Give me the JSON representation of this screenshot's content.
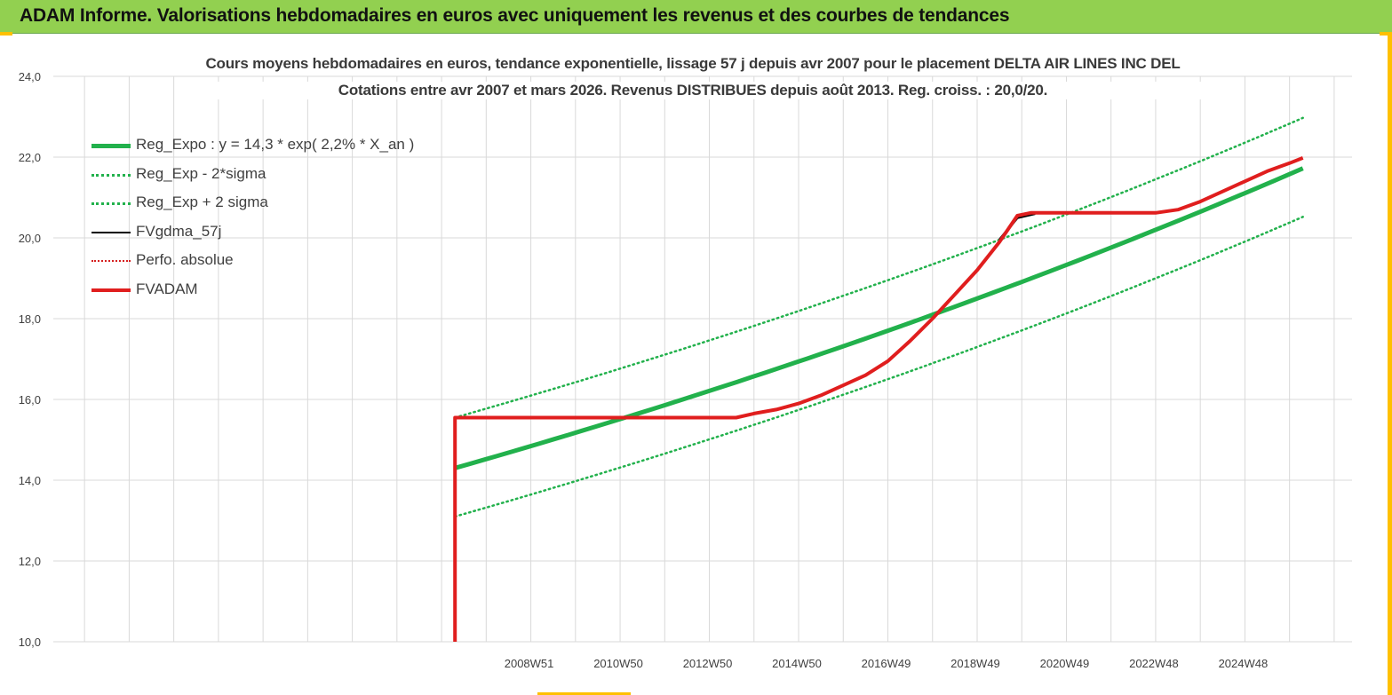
{
  "banner": {
    "title": "ADAM Informe. Valorisations hebdomadaires en euros avec uniquement les revenus et des courbes de tendances"
  },
  "colors": {
    "banner_bg": "#92d050",
    "accent_yellow": "#ffc000",
    "reg_expo": "#22b14c",
    "fvadam": "#e01e1e",
    "fvgdma": "#000000"
  },
  "chart_data": {
    "type": "line",
    "title_line1": "Cours moyens hebdomadaires en euros, tendance exponentielle, lissage 57 j depuis avr 2007 pour le placement DELTA AIR LINES INC DEL",
    "title_line2": "Cotations entre avr 2007 et mars 2026. Revenus DISTRIBUES depuis août 2013. Reg. croiss. : 20,0/20.",
    "xlabel": "",
    "ylabel": "",
    "ylim": [
      10,
      24
    ],
    "y_ticks": [
      "10,0",
      "12,0",
      "14,0",
      "16,0",
      "18,0",
      "20,0",
      "22,0",
      "24,0"
    ],
    "x_tick_labels": [
      "2008W51",
      "2010W50",
      "2012W50",
      "2014W50",
      "2016W49",
      "2018W49",
      "2020W49",
      "2022W48",
      "2024W48"
    ],
    "xlim": [
      1998.3,
      2027.4
    ],
    "x_tick_positions": [
      2008.96,
      2010.96,
      2012.96,
      2014.96,
      2016.96,
      2018.96,
      2020.96,
      2022.96,
      2024.96
    ],
    "grid": "vertical-and-horizontal",
    "legend_position": "top-left",
    "legend": [
      {
        "name": "Reg_Expo : y = 14,3 * exp( 2,2% *  X_an )",
        "style": "thick-green"
      },
      {
        "name": "Reg_Exp - 2*sigma",
        "style": "dotted-green"
      },
      {
        "name": "Reg_Exp + 2 sigma",
        "style": "dotted-green"
      },
      {
        "name": "FVgdma_57j",
        "style": "black"
      },
      {
        "name": "Perfo. absolue",
        "style": "dotted-red"
      },
      {
        "name": "FVADAM",
        "style": "thick-red"
      }
    ],
    "series": [
      {
        "name": "Reg_Expo : y = 14,3 * exp( 2,2% *  X_an )",
        "x": [
          2007.3,
          2026.3
        ],
        "a": 14.3,
        "b": 0.022,
        "offset": 0
      },
      {
        "name": "Reg_Exp - 2*sigma",
        "x": [
          2007.3,
          2026.3
        ],
        "a": 14.3,
        "b": 0.022,
        "offset": -1.2
      },
      {
        "name": "Reg_Exp + 2 sigma",
        "x": [
          2007.3,
          2026.3
        ],
        "a": 14.3,
        "b": 0.022,
        "offset": 1.25
      },
      {
        "name": "FVADAM",
        "points": [
          [
            2007.3,
            10.0
          ],
          [
            2007.3,
            15.55
          ],
          [
            2013.6,
            15.55
          ],
          [
            2014.0,
            15.65
          ],
          [
            2014.5,
            15.75
          ],
          [
            2015.0,
            15.9
          ],
          [
            2015.5,
            16.1
          ],
          [
            2016.0,
            16.35
          ],
          [
            2016.5,
            16.6
          ],
          [
            2017.0,
            16.95
          ],
          [
            2017.5,
            17.45
          ],
          [
            2018.0,
            18.0
          ],
          [
            2018.5,
            18.6
          ],
          [
            2019.0,
            19.2
          ],
          [
            2019.5,
            19.9
          ],
          [
            2019.9,
            20.55
          ],
          [
            2020.2,
            20.62
          ],
          [
            2023.0,
            20.62
          ],
          [
            2023.5,
            20.7
          ],
          [
            2024.0,
            20.9
          ],
          [
            2024.5,
            21.15
          ],
          [
            2025.0,
            21.4
          ],
          [
            2025.5,
            21.65
          ],
          [
            2026.0,
            21.85
          ],
          [
            2026.3,
            21.98
          ]
        ]
      },
      {
        "name": "FVgdma_57j",
        "points": [
          [
            2019.5,
            19.95
          ],
          [
            2019.9,
            20.5
          ],
          [
            2020.3,
            20.6
          ]
        ]
      }
    ]
  }
}
